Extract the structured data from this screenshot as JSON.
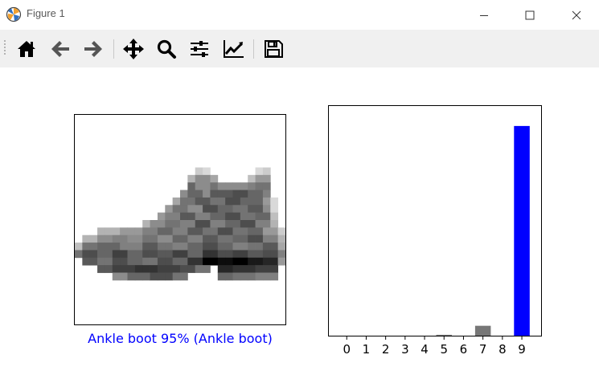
{
  "window": {
    "title": "Figure 1"
  },
  "toolbar": {
    "buttons": [
      {
        "name": "home-button",
        "icon": "home-icon"
      },
      {
        "name": "back-button",
        "icon": "arrow-left-icon"
      },
      {
        "name": "forward-button",
        "icon": "arrow-right-icon"
      },
      {
        "name": "pan-button",
        "icon": "move-icon"
      },
      {
        "name": "zoom-button",
        "icon": "magnifier-icon"
      },
      {
        "name": "subplots-button",
        "icon": "sliders-icon"
      },
      {
        "name": "axes-button",
        "icon": "line-chart-icon"
      },
      {
        "name": "save-button",
        "icon": "floppy-disk-icon"
      }
    ]
  },
  "figure": {
    "image_label": "Ankle boot 95% (Ankle boot)",
    "label_color": "#0000ff"
  },
  "chart_data": {
    "type": "bar",
    "categories": [
      "0",
      "1",
      "2",
      "3",
      "4",
      "5",
      "6",
      "7",
      "8",
      "9"
    ],
    "values": [
      0.0,
      0.0,
      0.0,
      0.0,
      0.0,
      0.004,
      0.0,
      0.045,
      0.0,
      0.953
    ],
    "bar_colors": [
      "#777777",
      "#777777",
      "#777777",
      "#777777",
      "#777777",
      "#777777",
      "#777777",
      "#777777",
      "#777777",
      "#0000ff"
    ],
    "ylim": [
      0,
      1
    ],
    "grid": false,
    "y_ticks_visible": false
  }
}
